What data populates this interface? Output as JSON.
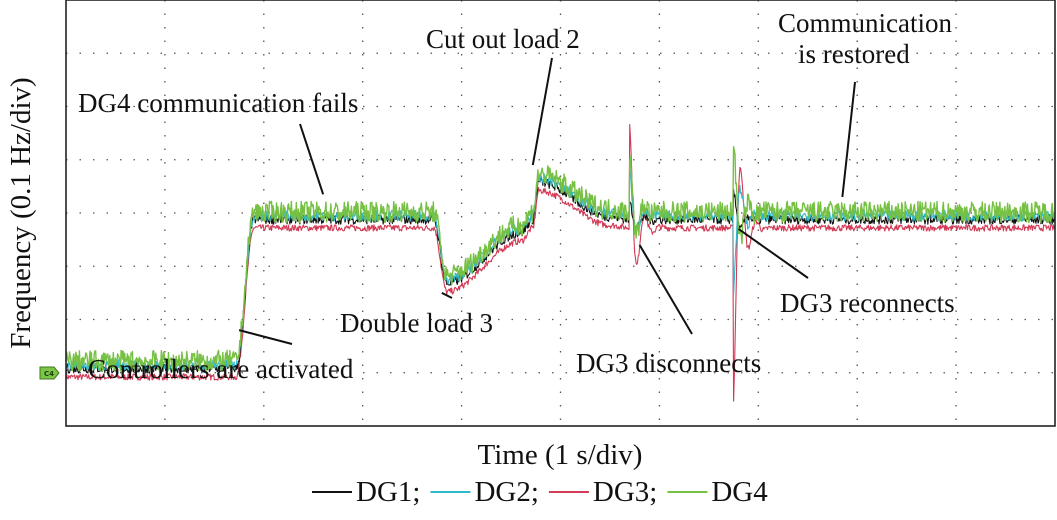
{
  "chart_data": {
    "type": "line",
    "xlabel": "Time (1 s/div)",
    "ylabel": "Frequency (0.1 Hz/div)",
    "grid": true,
    "xlim": [
      0,
      10
    ],
    "ylim": [
      -4,
      4
    ],
    "channel_marker": "C4",
    "legend_separator": ";",
    "series": [
      {
        "name": "DG1",
        "color": "#111111",
        "offset": -0.12,
        "noise": 0.09,
        "spikes": [
          {
            "t": 5.7,
            "a": 0.35
          },
          {
            "t": 6.75,
            "a": 0.55
          }
        ]
      },
      {
        "name": "DG2",
        "color": "#2fb8c8",
        "offset": -0.05,
        "noise": 0.1,
        "spikes": [
          {
            "t": 5.7,
            "a": 0.85
          },
          {
            "t": 6.75,
            "a": -1.4
          }
        ]
      },
      {
        "name": "DG3",
        "color": "#d23a55",
        "offset": -0.28,
        "noise": 0.06,
        "spikes": [
          {
            "t": 5.7,
            "a": 2.0
          },
          {
            "t": 6.75,
            "a": -3.2
          }
        ]
      },
      {
        "name": "DG4",
        "color": "#76c043",
        "offset": 0.02,
        "noise": 0.2,
        "spikes": [
          {
            "t": 5.7,
            "a": 1.1
          },
          {
            "t": 6.75,
            "a": 1.4
          }
        ]
      }
    ],
    "frequency_profile": [
      {
        "t": 0.0,
        "y": -2.8
      },
      {
        "t": 1.72,
        "y": -2.8
      },
      {
        "t": 1.9,
        "y": 0.0
      },
      {
        "t": 3.72,
        "y": 0.0
      },
      {
        "t": 3.85,
        "y": -1.2
      },
      {
        "t": 4.6,
        "y": -0.25
      },
      {
        "t": 4.72,
        "y": 0.0
      },
      {
        "t": 4.78,
        "y": 0.7
      },
      {
        "t": 5.5,
        "y": 0.05
      },
      {
        "t": 5.72,
        "y": 0.0
      },
      {
        "t": 10.0,
        "y": 0.0
      }
    ],
    "annotations": [
      {
        "lines": [
          "DG4 communication fails"
        ],
        "pointer_to": {
          "t": 2.6,
          "y": 0.35
        }
      },
      {
        "lines": [
          "Cut out load 2"
        ],
        "pointer_to": {
          "t": 4.72,
          "y": 0.9
        }
      },
      {
        "lines": [
          "Communication",
          "is restored"
        ],
        "pointer_to": {
          "t": 7.85,
          "y": 0.3
        }
      },
      {
        "lines": [
          "Double load 3"
        ],
        "pointer_to": {
          "t": 3.8,
          "y": -1.5
        }
      },
      {
        "lines": [
          "DG3 reconnects"
        ],
        "pointer_to": {
          "t": 6.8,
          "y": -0.3
        }
      },
      {
        "lines": [
          "DG3 disconnects"
        ],
        "pointer_to": {
          "t": 5.8,
          "y": -0.6
        }
      },
      {
        "lines": [
          "Controllers are activated"
        ],
        "pointer_to": {
          "t": 1.75,
          "y": -2.2
        }
      }
    ]
  }
}
